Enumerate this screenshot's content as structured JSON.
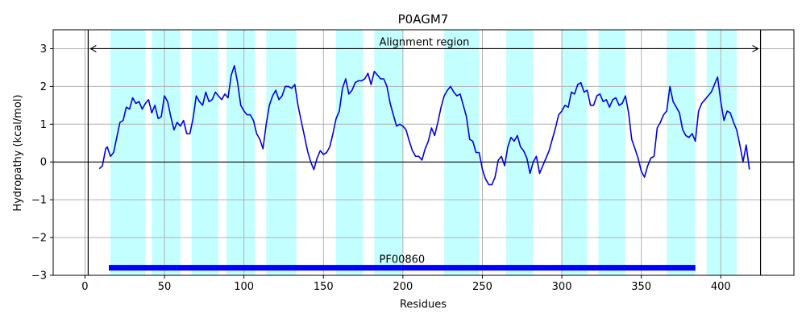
{
  "chart_data": {
    "type": "line",
    "title": "P0AGM7",
    "xlabel": "Residues",
    "ylabel": "Hydropathy (kcal/mol)",
    "xlim": [
      -20,
      446
    ],
    "ylim": [
      -3,
      3.5
    ],
    "x_ticks": [
      0,
      50,
      100,
      150,
      200,
      250,
      300,
      350,
      400
    ],
    "y_ticks": [
      -3,
      -2,
      -1,
      0,
      1,
      2,
      3
    ],
    "grid": true,
    "colors": {
      "line": "#0000ee",
      "band": "#c4ffff",
      "domain_bar": "#0000ff",
      "grid": "#b0b0b0"
    },
    "hydrophobic_regions": [
      [
        16,
        38
      ],
      [
        42,
        60
      ],
      [
        67,
        84
      ],
      [
        89,
        107
      ],
      [
        114,
        133
      ],
      [
        158,
        175
      ],
      [
        182,
        200
      ],
      [
        226,
        248
      ],
      [
        265,
        282
      ],
      [
        300,
        316
      ],
      [
        323,
        340
      ],
      [
        366,
        384
      ],
      [
        391,
        410
      ]
    ],
    "alignment_region": {
      "label": "Alignment region",
      "start": 2,
      "end": 425,
      "y": 3
    },
    "domain": {
      "label": "PF00860",
      "start": 15,
      "end": 384,
      "y": -2.8
    },
    "series": [
      {
        "x": [
          9,
          11,
          13,
          14,
          16,
          18,
          20,
          22,
          24,
          26,
          28,
          30,
          32,
          34,
          36,
          38,
          40,
          42,
          44,
          46,
          48,
          50,
          52,
          54,
          56,
          58,
          60,
          62,
          64,
          66,
          68,
          70,
          72,
          74,
          76,
          78,
          80,
          82,
          84,
          86,
          88,
          90,
          92,
          94,
          96,
          98,
          100,
          102,
          104,
          106,
          108,
          110,
          112,
          114,
          116,
          118,
          120,
          122,
          124,
          126,
          128,
          130,
          132,
          134,
          136,
          138,
          140,
          142,
          144,
          146,
          148,
          150,
          152,
          154,
          156,
          158,
          160,
          162,
          164,
          166,
          168,
          170,
          172,
          174,
          176,
          178,
          180,
          182,
          184,
          186,
          188,
          190,
          192,
          194,
          196,
          198,
          200,
          202,
          204,
          206,
          208,
          210,
          212,
          214,
          216,
          218,
          220,
          222,
          224,
          226,
          228,
          230,
          232,
          234,
          236,
          238,
          240,
          242,
          244,
          246,
          248,
          250,
          252,
          254,
          256,
          258,
          260,
          262,
          264,
          266,
          268,
          270,
          272,
          274,
          276,
          278,
          280,
          282,
          284,
          286,
          288,
          290,
          292,
          294,
          296,
          298,
          300,
          302,
          304,
          306,
          308,
          310,
          312,
          314,
          316,
          318,
          320,
          322,
          324,
          326,
          328,
          330,
          332,
          334,
          336,
          338,
          340,
          342,
          344,
          346,
          348,
          350,
          352,
          354,
          356,
          358,
          360,
          362,
          364,
          366,
          368,
          370,
          372,
          374,
          376,
          378,
          380,
          382,
          384,
          386,
          388,
          390,
          392,
          394,
          396,
          398,
          400,
          402,
          404,
          406,
          408,
          410,
          412,
          414,
          416,
          418
        ],
        "y": [
          -0.18,
          -0.1,
          0.35,
          0.4,
          0.15,
          0.25,
          0.65,
          1.05,
          1.1,
          1.45,
          1.4,
          1.7,
          1.55,
          1.6,
          1.4,
          1.55,
          1.65,
          1.3,
          1.5,
          1.15,
          1.2,
          1.75,
          1.6,
          1.2,
          0.85,
          1.05,
          0.95,
          1.1,
          0.75,
          0.75,
          1.15,
          1.75,
          1.6,
          1.5,
          1.85,
          1.6,
          1.65,
          1.85,
          1.75,
          1.65,
          1.8,
          1.7,
          2.3,
          2.55,
          2.1,
          1.5,
          1.35,
          1.25,
          1.25,
          1.1,
          0.75,
          0.6,
          0.35,
          1.0,
          1.5,
          1.75,
          1.9,
          1.65,
          1.75,
          2.0,
          2.0,
          1.95,
          2.05,
          1.5,
          1.1,
          0.7,
          0.3,
          0.0,
          -0.2,
          0.1,
          0.3,
          0.2,
          0.25,
          0.4,
          0.75,
          1.15,
          1.35,
          1.95,
          2.2,
          1.8,
          1.9,
          2.1,
          2.15,
          2.15,
          2.2,
          2.35,
          2.05,
          2.4,
          2.3,
          2.2,
          2.2,
          2.0,
          1.55,
          1.25,
          0.95,
          1.0,
          0.95,
          0.85,
          0.55,
          0.3,
          0.15,
          0.15,
          0.05,
          0.35,
          0.55,
          0.9,
          0.7,
          1.05,
          1.45,
          1.75,
          1.9,
          2.0,
          1.85,
          1.75,
          1.8,
          1.5,
          1.2,
          0.6,
          0.55,
          0.25,
          0.25,
          -0.2,
          -0.45,
          -0.6,
          -0.6,
          -0.4,
          0.05,
          0.15,
          -0.1,
          0.4,
          0.65,
          0.55,
          0.7,
          0.4,
          0.3,
          0.1,
          -0.3,
          0.0,
          0.15,
          -0.3,
          -0.1,
          0.1,
          0.3,
          0.6,
          0.9,
          1.25,
          1.35,
          1.5,
          1.45,
          1.85,
          1.8,
          2.05,
          2.1,
          1.85,
          1.9,
          1.5,
          1.5,
          1.75,
          1.8,
          1.6,
          1.65,
          1.45,
          1.65,
          1.7,
          1.5,
          1.55,
          1.75,
          1.3,
          0.6,
          0.35,
          0.1,
          -0.25,
          -0.4,
          -0.1,
          0.1,
          0.15,
          0.9,
          1.05,
          1.25,
          1.35,
          2.0,
          1.6,
          1.45,
          1.3,
          0.85,
          0.7,
          0.65,
          0.75,
          0.55,
          1.35,
          1.55,
          1.65,
          1.75,
          1.85,
          2.05,
          2.25,
          1.6,
          1.1,
          1.35,
          1.3,
          1.05,
          0.85,
          0.45,
          0.0,
          0.45,
          -0.2
        ]
      }
    ]
  }
}
